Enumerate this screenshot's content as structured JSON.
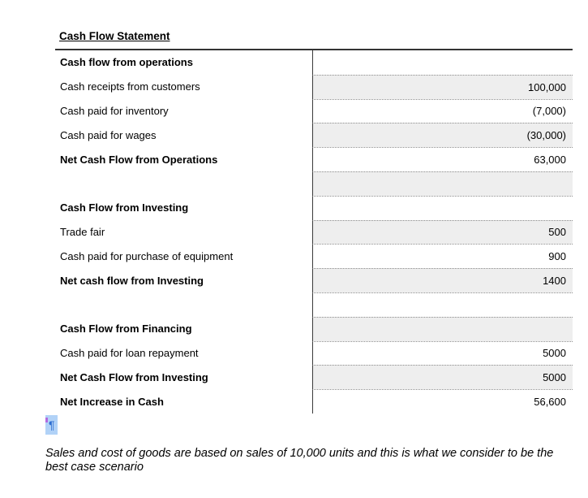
{
  "document": {
    "title": "Cash Flow Statement",
    "paragraph_mark": "¶",
    "note": "Sales and cost of goods are based on sales of 10,000 units and this is what we consider to be the best case scenario"
  },
  "table": {
    "rows": [
      {
        "label": "Cash flow from operations",
        "value": "",
        "bold": true,
        "shaded": false
      },
      {
        "label": "Cash receipts from customers",
        "value": "100,000",
        "bold": false,
        "shaded": true
      },
      {
        "label": "Cash paid for inventory",
        "value": "(7,000)",
        "bold": false,
        "shaded": false
      },
      {
        "label": "Cash paid for wages",
        "value": "(30,000)",
        "bold": false,
        "shaded": true
      },
      {
        "label": "Net Cash Flow from Operations",
        "value": "63,000",
        "bold": true,
        "shaded": false
      },
      {
        "label": "",
        "value": "",
        "bold": false,
        "shaded": true
      },
      {
        "label": "Cash Flow from Investing",
        "value": "",
        "bold": true,
        "shaded": false
      },
      {
        "label": "Trade fair",
        "value": "500",
        "bold": false,
        "shaded": true
      },
      {
        "label": "Cash paid for purchase of equipment",
        "value": "900",
        "bold": false,
        "shaded": false
      },
      {
        "label": "Net cash flow from Investing",
        "value": "1400",
        "bold": true,
        "shaded": true
      },
      {
        "label": "",
        "value": "",
        "bold": false,
        "shaded": false
      },
      {
        "label": "Cash Flow from Financing",
        "value": "",
        "bold": true,
        "shaded": true
      },
      {
        "label": "Cash paid for loan repayment",
        "value": "5000",
        "bold": false,
        "shaded": false
      },
      {
        "label": "Net Cash Flow from Investing",
        "value": "5000",
        "bold": true,
        "shaded": true
      },
      {
        "label": "Net Increase in Cash",
        "value": "56,600",
        "bold": true,
        "shaded": false
      }
    ]
  },
  "colors": {
    "field_shade": "#eeeeee",
    "dotted_separator": "#8c8c8c",
    "table_border": "#333333",
    "column_divider": "#3a3a3a",
    "selection_highlight": "#b1d2f7",
    "selection_text": "#2e6fd2",
    "cursor_mark": "#b06ae0"
  }
}
